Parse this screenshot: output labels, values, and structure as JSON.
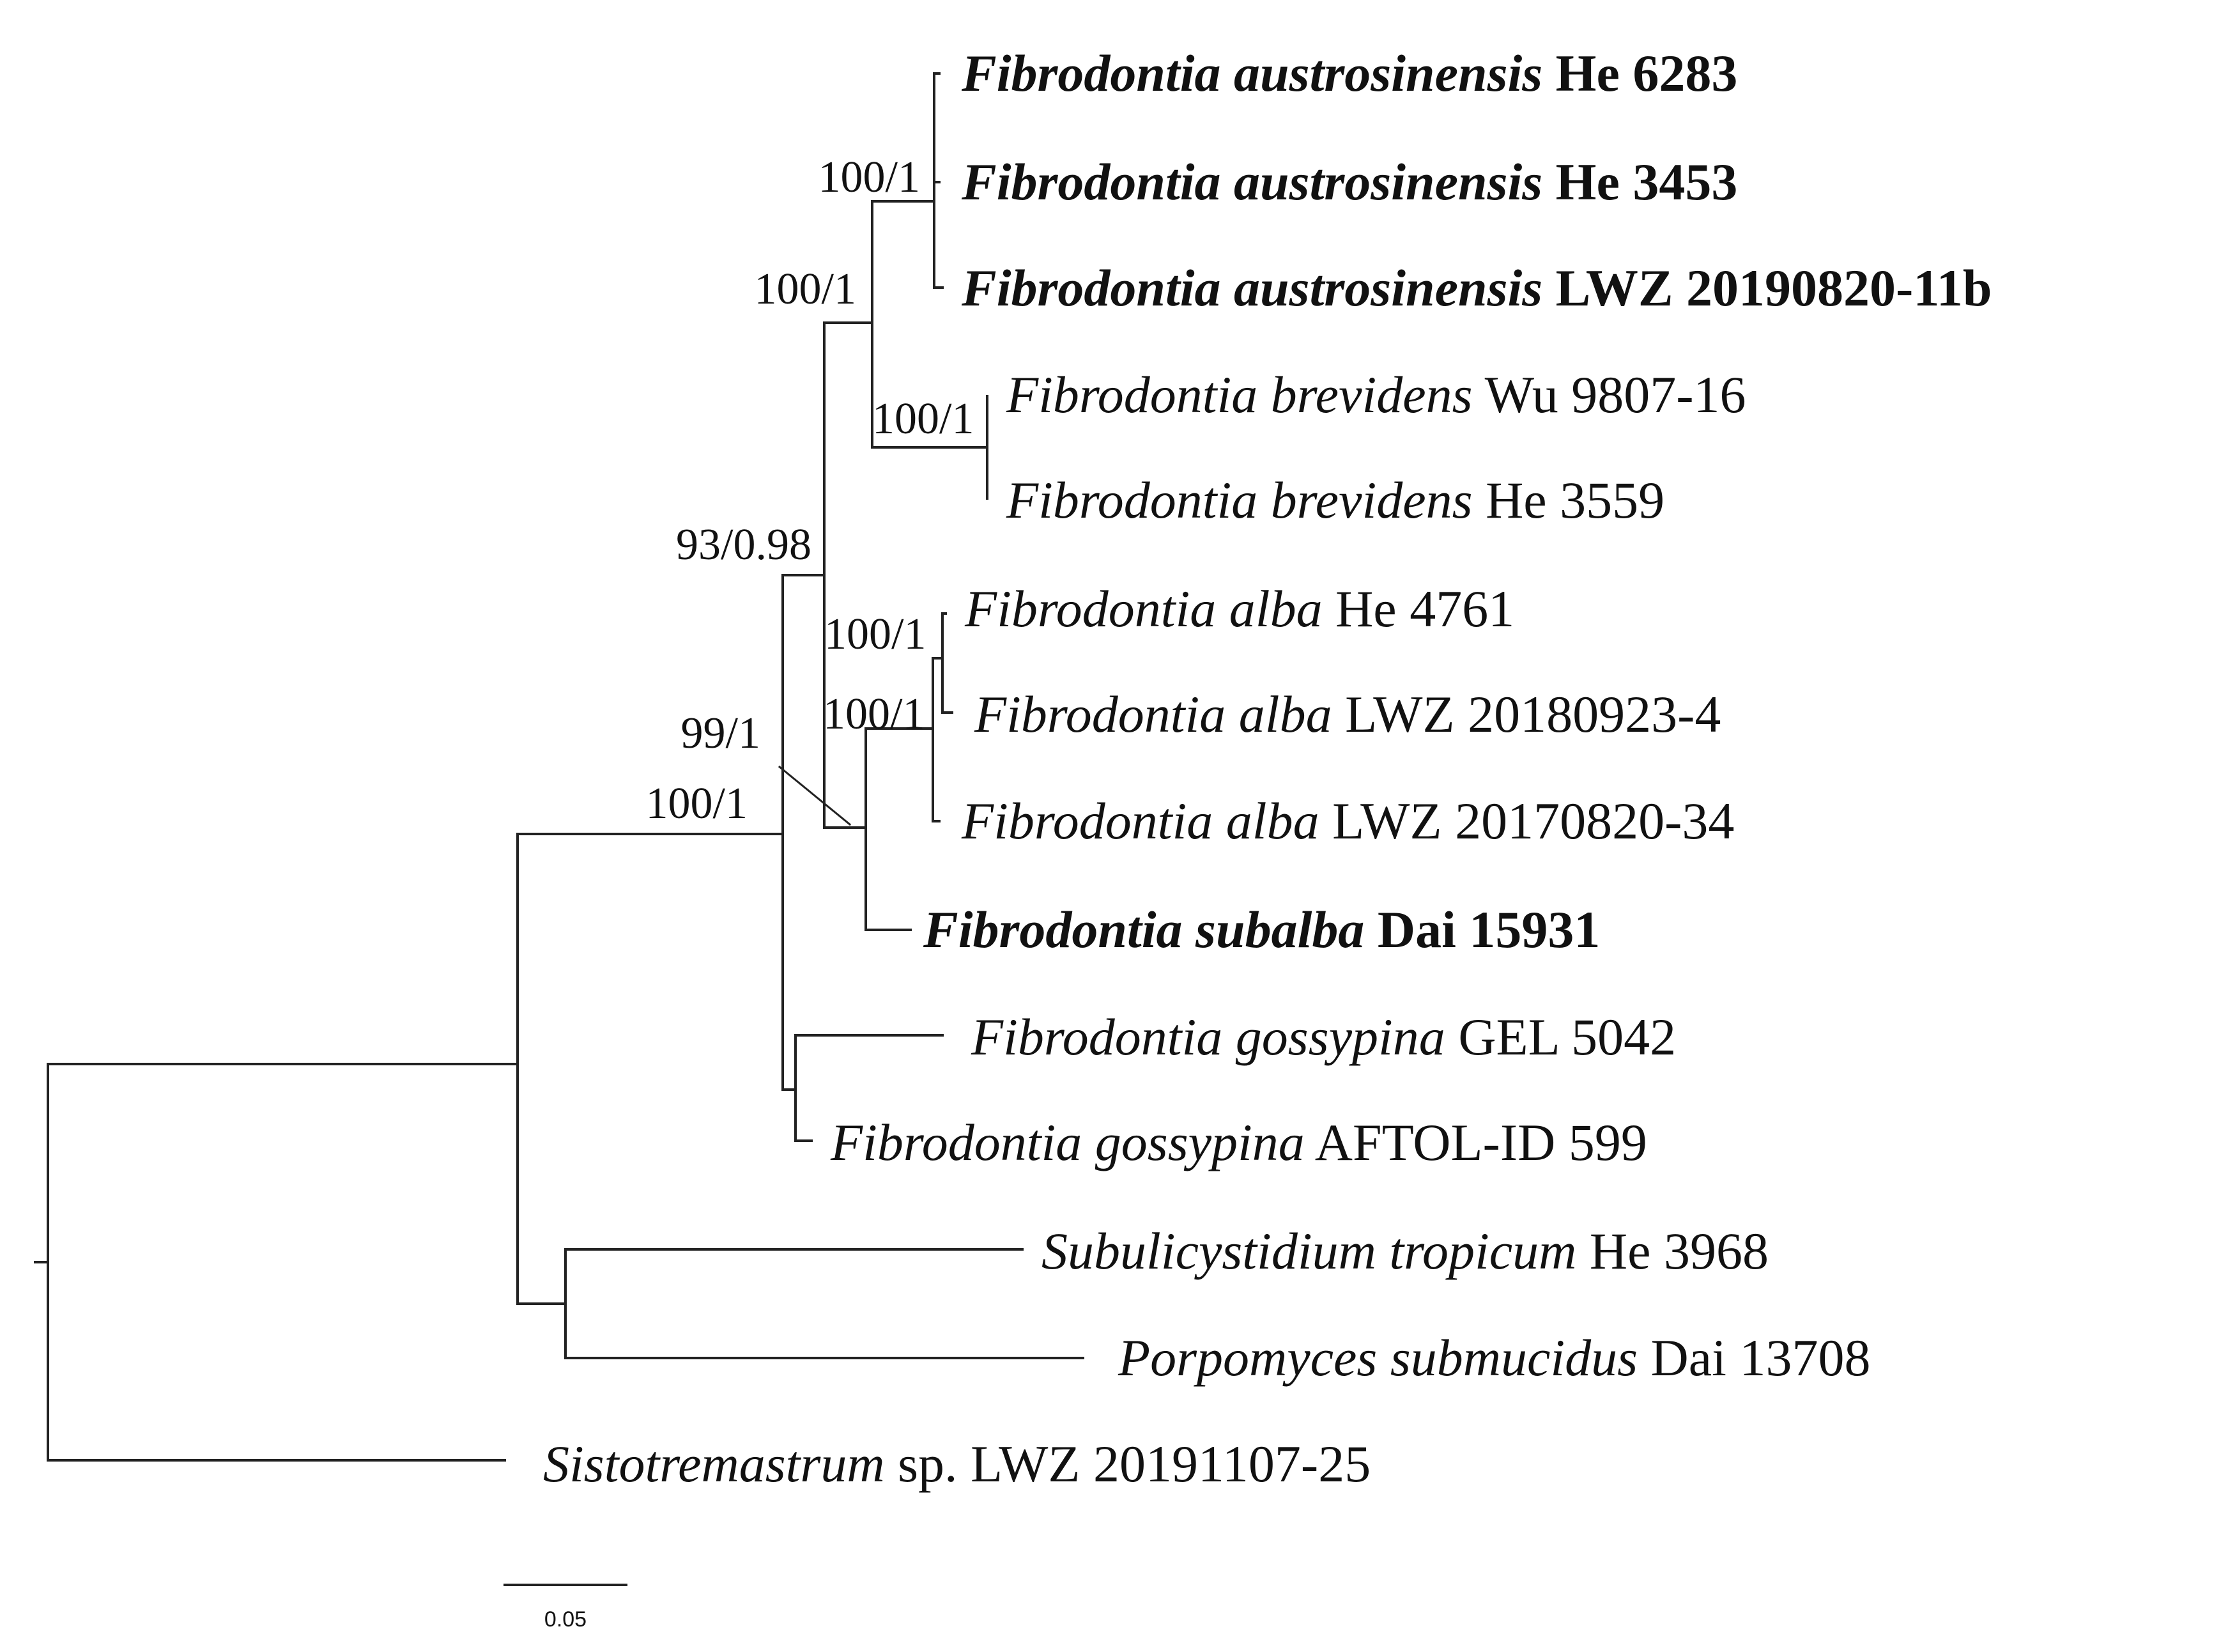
{
  "taxa": [
    {
      "id": "t1",
      "genus_species": "Fibrodontia austrosinensis",
      "voucher": "He 6283",
      "bold": true
    },
    {
      "id": "t2",
      "genus_species": "Fibrodontia austrosinensis",
      "voucher": "He 3453",
      "bold": true
    },
    {
      "id": "t3",
      "genus_species": "Fibrodontia austrosinensis",
      "voucher": "LWZ 20190820-11b",
      "bold": true
    },
    {
      "id": "t4",
      "genus_species": "Fibrodontia brevidens",
      "voucher": "Wu 9807-16",
      "bold": false
    },
    {
      "id": "t5",
      "genus_species": "Fibrodontia brevidens",
      "voucher": "He 3559",
      "bold": false
    },
    {
      "id": "t6",
      "genus_species": "Fibrodontia alba",
      "voucher": "He 4761",
      "bold": false
    },
    {
      "id": "t7",
      "genus_species": "Fibrodontia alba",
      "voucher": "LWZ 20180923-4",
      "bold": false
    },
    {
      "id": "t8",
      "genus_species": "Fibrodontia alba",
      "voucher": "LWZ 20170820-34",
      "bold": false
    },
    {
      "id": "t9",
      "genus_species": "Fibrodontia subalba",
      "voucher": "Dai 15931",
      "bold": true
    },
    {
      "id": "t10",
      "genus_species": "Fibrodontia gossypina",
      "voucher": "GEL 5042",
      "bold": false
    },
    {
      "id": "t11",
      "genus_species": "Fibrodontia gossypina",
      "voucher": "AFTOL-ID 599",
      "bold": false
    },
    {
      "id": "t12",
      "genus_species": "Subulicystidium tropicum",
      "voucher": "He 3968",
      "bold": false
    },
    {
      "id": "t13",
      "genus_species": "Porpomyces submucidus",
      "voucher": "Dai 13708",
      "bold": false
    },
    {
      "id": "t14",
      "genus_species": "Sistotremastrum",
      "voucher": "sp. LWZ 20191107-25",
      "bold": false
    }
  ],
  "support_values": [
    {
      "id": "s1",
      "text": "100/1"
    },
    {
      "id": "s2",
      "text": "100/1"
    },
    {
      "id": "s3",
      "text": "100/1"
    },
    {
      "id": "s4",
      "text": "93/0.98"
    },
    {
      "id": "s5",
      "text": "100/1"
    },
    {
      "id": "s6",
      "text": "100/1"
    },
    {
      "id": "s7",
      "text": "99/1"
    },
    {
      "id": "s8",
      "text": "100/1"
    }
  ],
  "scale_bar": {
    "label": "0.05"
  }
}
